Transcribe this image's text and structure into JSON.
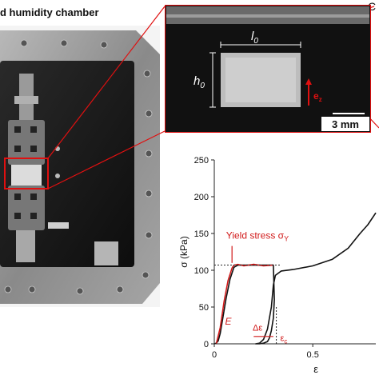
{
  "title": "d humidity chamber",
  "corner_label": "C",
  "zoom": {
    "l0_label": "l",
    "l0_sub": "0",
    "h0_label": "h",
    "h0_sub": "0",
    "ez_label": "e",
    "ez_sub": "z",
    "scale_label": "3 mm"
  },
  "chart_data": {
    "type": "line",
    "xlabel": "ε",
    "ylabel": "σ (kPa)",
    "xlim": [
      0,
      0.82
    ],
    "ylim": [
      0,
      250
    ],
    "x_ticks": [
      "0",
      "0.5"
    ],
    "y_ticks": [
      "0",
      "50",
      "100",
      "150",
      "200",
      "250"
    ],
    "x_tick_values": [
      0,
      0.5
    ],
    "y_tick_values": [
      0,
      50,
      100,
      150,
      200,
      250
    ],
    "annotations": {
      "yield": "Yield stress σ",
      "yield_sub": "Y",
      "E": "E",
      "delta_eps": "Δε",
      "eps_c": "ε",
      "eps_c_sub": "c"
    },
    "yield_level": 107,
    "series": [
      {
        "color": "#111111",
        "x": [
          0.0,
          0.01,
          0.02,
          0.03,
          0.04,
          0.06,
          0.08,
          0.1,
          0.12,
          0.15,
          0.2,
          0.25,
          0.3,
          0.305,
          0.3,
          0.29,
          0.28,
          0.27,
          0.25,
          0.23,
          0.21,
          0.23,
          0.25,
          0.27,
          0.29,
          0.3,
          0.31,
          0.34,
          0.4,
          0.5,
          0.6,
          0.68,
          0.74,
          0.78,
          0.82
        ],
        "values": [
          0,
          1,
          4,
          14,
          30,
          62,
          88,
          104,
          107,
          107,
          107,
          107,
          107,
          60,
          35,
          18,
          8,
          3,
          1,
          0,
          0,
          1,
          6,
          20,
          50,
          80,
          93,
          99,
          101,
          106,
          115,
          130,
          150,
          162,
          178
        ]
      },
      {
        "color": "#d11a1a",
        "x": [
          0.01,
          0.03,
          0.05,
          0.07,
          0.09,
          0.1,
          0.12,
          0.15,
          0.2,
          0.25,
          0.3
        ],
        "values": [
          0,
          22,
          58,
          86,
          103,
          107,
          108,
          106,
          108,
          106,
          107
        ]
      }
    ]
  },
  "colors": {
    "accent_red": "#d11a1a",
    "frame_metal": "#8c8c8c",
    "chamber_dark": "#1a1a1a"
  }
}
